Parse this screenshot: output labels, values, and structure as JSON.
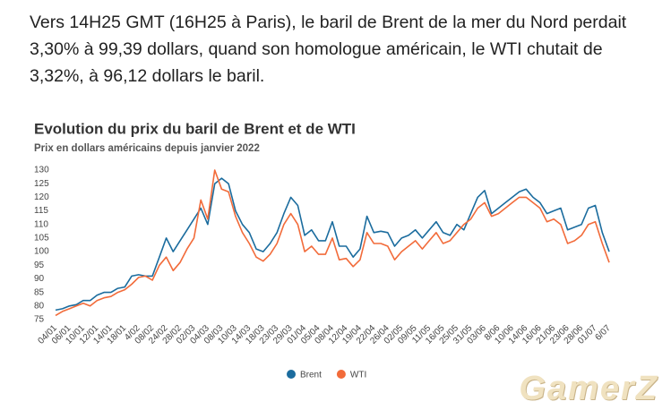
{
  "intro": "Vers 14H25 GMT (16H25 à Paris), le baril de Brent de la mer du Nord perdait 3,30% à 99,39 dollars, quand son homologue américain, le WTI chutait de 3,32%, à 96,12 dollars le baril.",
  "watermark": "GamerZ",
  "chart_data": {
    "type": "line",
    "title": "Evolution du prix du baril de Brent et de WTI",
    "subtitle": "Prix en dollars américains depuis janvier 2022",
    "categories": [
      "04/01",
      null,
      "06/01",
      null,
      "10/01",
      null,
      "12/01",
      null,
      "14/01",
      null,
      "18/01",
      null,
      "4/02",
      null,
      "08/02",
      null,
      "24/02",
      null,
      "28/02",
      null,
      "02/03",
      null,
      "04/03",
      null,
      "08/03",
      null,
      "10/03",
      null,
      "14/03",
      null,
      "18/03",
      null,
      "23/03",
      null,
      "29/03",
      null,
      "01/04",
      null,
      "05/04",
      null,
      "08/04",
      null,
      "12/04",
      null,
      "19/04",
      null,
      "22/04",
      null,
      "26/04",
      null,
      "02/05",
      null,
      "09/05",
      null,
      "11/05",
      null,
      "16/05",
      null,
      "25/05",
      null,
      "31/05",
      null,
      "03/06",
      null,
      "8/06",
      null,
      "10/06",
      null,
      "14/06",
      null,
      "16/06",
      null,
      "21/06",
      null,
      "23/06",
      null,
      "28/06",
      null,
      "01/07",
      null,
      "6/07"
    ],
    "series": [
      {
        "name": "Brent",
        "color": "#1b6c9e",
        "values": [
          78.5,
          79,
          80,
          80.5,
          82,
          82,
          84,
          85,
          85,
          86.5,
          87,
          91,
          91.5,
          91,
          91,
          98,
          105,
          100,
          104,
          108,
          112,
          116,
          110,
          125,
          127,
          125,
          115,
          110,
          107,
          101,
          100,
          103,
          107,
          114,
          120,
          117,
          106,
          108,
          104,
          104,
          111,
          102,
          102,
          98,
          101,
          113,
          107,
          107.5,
          107,
          102,
          105,
          106,
          108,
          105,
          108,
          111,
          107,
          106,
          110,
          108,
          114,
          120,
          122.5,
          114,
          116,
          118,
          120,
          122,
          123,
          120,
          118,
          114,
          115,
          116,
          108,
          109,
          110,
          116,
          117,
          107,
          100
        ]
      },
      {
        "name": "WTI",
        "color": "#f26b3a",
        "values": [
          76.5,
          78,
          79,
          80,
          81,
          80,
          82,
          83,
          83.5,
          85,
          86,
          88,
          90.5,
          91,
          89.5,
          95,
          98,
          93,
          96,
          101,
          105,
          119,
          112,
          130,
          123,
          122,
          113,
          107,
          103,
          98,
          96.5,
          99,
          103,
          110,
          114,
          110,
          100,
          102,
          99,
          99,
          105,
          97,
          97.5,
          94.5,
          97,
          107,
          103,
          103,
          102,
          97,
          100,
          102,
          104,
          101,
          104,
          107,
          103,
          104,
          107,
          110,
          112,
          116,
          118,
          113,
          114,
          116,
          118,
          120,
          120,
          118,
          116,
          111,
          112,
          110,
          103,
          104,
          106,
          110,
          111,
          103,
          96
        ]
      }
    ],
    "ylim": [
      75,
      130
    ],
    "yticks": [
      75,
      80,
      85,
      90,
      95,
      100,
      105,
      110,
      115,
      120,
      125,
      130
    ],
    "legend": "bottom"
  }
}
